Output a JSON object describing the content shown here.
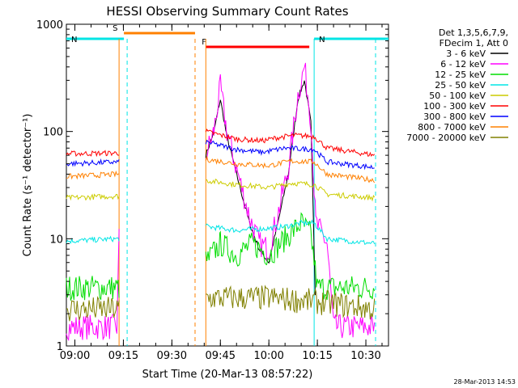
{
  "chart_data": {
    "type": "line",
    "title": "HESSI Observing Summary Count Rates",
    "xlabel": "Start Time (20-Mar-13 08:57:22)",
    "ylabel": "Count Rate (s⁻¹ detector⁻¹)",
    "y_scale": "log",
    "ylim": [
      1,
      1000
    ],
    "xlim": [
      "08:57:22",
      "10:37:00"
    ],
    "x_ticks": [
      "09:00",
      "09:15",
      "09:30",
      "09:45",
      "10:00",
      "10:15",
      "10:30"
    ],
    "y_ticks": [
      "1",
      "10",
      "100",
      "1000"
    ],
    "legend_header": [
      "Det 1,3,5,6,7,9,",
      "FDecim 1, Att 0"
    ],
    "legend_position": "right",
    "timestamp": "28-Mar-2013 14:53",
    "flags": [
      {
        "label": "S",
        "color": "#ff8000",
        "start": "09:15:10",
        "end": "09:37:10"
      },
      {
        "label": "N",
        "color": "#00e5e5",
        "start": "08:57:22",
        "end": "09:15:10"
      },
      {
        "label": "N",
        "color": "#00e5e5",
        "start": "10:14:00",
        "end": "10:37:00"
      },
      {
        "label": "F",
        "color": "#ff0000",
        "start": "09:40:30",
        "end": "10:12:30"
      }
    ],
    "vertical_markers": [
      {
        "time": "09:13:40",
        "color": "#ff8000",
        "style": "solid"
      },
      {
        "time": "09:16:10",
        "color": "#00e5e5",
        "style": "dashed"
      },
      {
        "time": "09:37:10",
        "color": "#ff8000",
        "style": "dashed"
      },
      {
        "time": "09:40:30",
        "color": "#ff8000",
        "style": "solid"
      },
      {
        "time": "10:14:00",
        "color": "#00e5e5",
        "style": "solid"
      },
      {
        "time": "10:33:00",
        "color": "#00e5e5",
        "style": "dashed"
      }
    ],
    "data_gaps": [
      [
        "09:13:40",
        "09:40:30"
      ]
    ],
    "series": [
      {
        "name": "3 - 6 keV",
        "color": "#000000",
        "points": [
          [
            "09:40:30",
            60
          ],
          [
            "09:43:00",
            100
          ],
          [
            "09:45:00",
            200
          ],
          [
            "09:47:00",
            90
          ],
          [
            "09:50:00",
            40
          ],
          [
            "09:54:00",
            14
          ],
          [
            "09:57:00",
            8
          ],
          [
            "10:00:00",
            6
          ],
          [
            "10:03:00",
            15
          ],
          [
            "10:06:00",
            40
          ],
          [
            "10:09:00",
            200
          ],
          [
            "10:11:00",
            300
          ],
          [
            "10:13:00",
            120
          ],
          [
            "10:14:30",
            2
          ]
        ]
      },
      {
        "name": "6 - 12 keV",
        "color": "#ff00ff",
        "points": [
          [
            "08:57:22",
            1.5
          ],
          [
            "09:13:00",
            1.5
          ],
          [
            "09:13:40",
            10
          ],
          [
            "09:40:30",
            60
          ],
          [
            "09:43:00",
            100
          ],
          [
            "09:45:00",
            260
          ],
          [
            "09:47:00",
            100
          ],
          [
            "09:50:00",
            45
          ],
          [
            "09:54:00",
            16
          ],
          [
            "09:57:00",
            9
          ],
          [
            "10:00:00",
            8
          ],
          [
            "10:03:00",
            18
          ],
          [
            "10:06:00",
            45
          ],
          [
            "10:09:00",
            220
          ],
          [
            "10:11:00",
            400
          ],
          [
            "10:13:00",
            130
          ],
          [
            "10:14:30",
            14
          ],
          [
            "10:18:00",
            9
          ],
          [
            "10:20:00",
            1.5
          ],
          [
            "10:33:00",
            1.5
          ]
        ]
      },
      {
        "name": "12 - 25 keV",
        "color": "#00dd00",
        "points": [
          [
            "08:57:22",
            3.5
          ],
          [
            "09:13:40",
            3.5
          ],
          [
            "09:40:30",
            6
          ],
          [
            "09:45:00",
            9
          ],
          [
            "09:50:00",
            7
          ],
          [
            "09:55:00",
            9
          ],
          [
            "10:00:00",
            7
          ],
          [
            "10:05:00",
            10
          ],
          [
            "10:10:00",
            14
          ],
          [
            "10:13:00",
            11
          ],
          [
            "10:15:00",
            3.5
          ],
          [
            "10:33:00",
            3.5
          ]
        ]
      },
      {
        "name": "25 - 50 keV",
        "color": "#00e5e5",
        "points": [
          [
            "08:57:22",
            9.5
          ],
          [
            "09:13:40",
            10
          ],
          [
            "09:40:30",
            13
          ],
          [
            "09:50:00",
            12
          ],
          [
            "10:00:00",
            12.5
          ],
          [
            "10:05:00",
            13
          ],
          [
            "10:10:00",
            14
          ],
          [
            "10:14:00",
            14
          ],
          [
            "10:18:00",
            10
          ],
          [
            "10:33:00",
            9
          ]
        ]
      },
      {
        "name": "50 - 100 keV",
        "color": "#cccc00",
        "points": [
          [
            "08:57:22",
            24
          ],
          [
            "09:13:40",
            25
          ],
          [
            "09:40:30",
            35
          ],
          [
            "09:50:00",
            32
          ],
          [
            "10:00:00",
            30
          ],
          [
            "10:07:00",
            33
          ],
          [
            "10:14:00",
            32
          ],
          [
            "10:18:00",
            26
          ],
          [
            "10:33:00",
            24
          ]
        ]
      },
      {
        "name": "100 - 300 keV",
        "color": "#ff0000",
        "points": [
          [
            "08:57:22",
            62
          ],
          [
            "09:13:40",
            63
          ],
          [
            "09:40:30",
            100
          ],
          [
            "09:50:00",
            85
          ],
          [
            "09:58:00",
            82
          ],
          [
            "10:03:00",
            88
          ],
          [
            "10:08:00",
            92
          ],
          [
            "10:14:00",
            90
          ],
          [
            "10:18:00",
            70
          ],
          [
            "10:33:00",
            60
          ]
        ]
      },
      {
        "name": "300 - 800 keV",
        "color": "#0000ff",
        "points": [
          [
            "08:57:22",
            50
          ],
          [
            "09:13:40",
            52
          ],
          [
            "09:40:30",
            80
          ],
          [
            "09:50:00",
            68
          ],
          [
            "09:58:00",
            64
          ],
          [
            "10:05:00",
            70
          ],
          [
            "10:14:00",
            68
          ],
          [
            "10:18:00",
            52
          ],
          [
            "10:33:00",
            46
          ]
        ]
      },
      {
        "name": "800 - 7000 keV",
        "color": "#ff8000",
        "points": [
          [
            "08:57:22",
            38
          ],
          [
            "09:13:40",
            40
          ],
          [
            "09:40:30",
            55
          ],
          [
            "09:50:00",
            50
          ],
          [
            "10:00:00",
            48
          ],
          [
            "10:07:00",
            53
          ],
          [
            "10:14:00",
            52
          ],
          [
            "10:18:00",
            40
          ],
          [
            "10:33:00",
            35
          ]
        ]
      },
      {
        "name": "7000 - 20000 keV",
        "color": "#808000",
        "points": [
          [
            "08:57:22",
            2.2
          ],
          [
            "09:13:40",
            2.2
          ],
          [
            "09:40:30",
            2.8
          ],
          [
            "10:00:00",
            2.8
          ],
          [
            "10:14:00",
            2.6
          ],
          [
            "10:33:00",
            2.2
          ]
        ]
      }
    ]
  }
}
